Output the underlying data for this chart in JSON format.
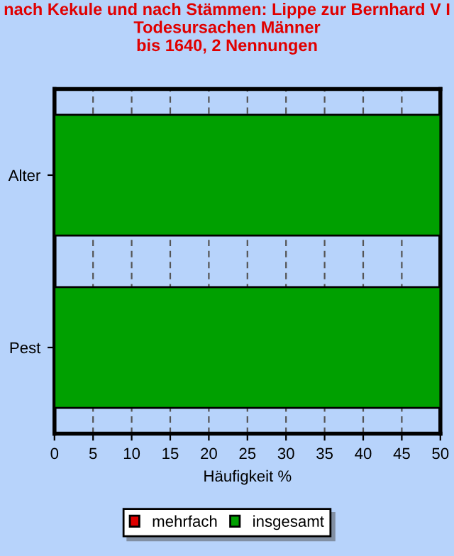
{
  "chart_data": {
    "type": "bar",
    "orientation": "horizontal",
    "title": "nach Kekule und nach Stämmen: Lippe zur Bernhard V I\nTodesursachen Männer\nbis 1640, 2 Nennungen",
    "xlabel": "Häufigkeit %",
    "categories": [
      "Alter",
      "Pest"
    ],
    "series": [
      {
        "name": "mehrfach",
        "color": "#e00000",
        "values": [
          null,
          null
        ]
      },
      {
        "name": "insgesamt",
        "color": "#00a000",
        "values": [
          50,
          50
        ]
      }
    ],
    "xlim": [
      0,
      50
    ],
    "xticks": [
      0,
      5,
      10,
      15,
      20,
      25,
      30,
      35,
      40,
      45,
      50
    ],
    "grid": "x",
    "legend": "bottom"
  }
}
